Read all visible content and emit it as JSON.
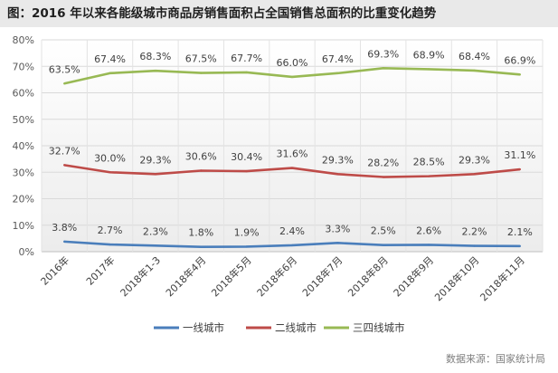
{
  "title": "图：2016 年以来各能级城市商品房销售面积占全国销售总面积的比重变化趋势",
  "source": "数据来源：国家统计局",
  "chart_data": {
    "type": "line",
    "title": "图：2016 年以来各能级城市商品房销售面积占全国销售总面积的比重变化趋势",
    "xlabel": "",
    "ylabel": "",
    "ylim": [
      0,
      80
    ],
    "yticks": [
      "0%",
      "10%",
      "20%",
      "30%",
      "40%",
      "50%",
      "60%",
      "70%",
      "80%"
    ],
    "grid": true,
    "legend_position": "bottom",
    "categories": [
      "2016年",
      "2017年",
      "2018年1-3",
      "2018年4月",
      "2018年5月",
      "2018年6月",
      "2018年7月",
      "2018年8月",
      "2018年9月",
      "2018年10月",
      "2018年11月"
    ],
    "series": [
      {
        "name": "一线城市",
        "color": "#4a7ebb",
        "values": [
          3.8,
          2.7,
          2.3,
          1.8,
          1.9,
          2.4,
          3.3,
          2.5,
          2.6,
          2.2,
          2.1
        ],
        "labels": [
          "3.8%",
          "2.7%",
          "2.3%",
          "1.8%",
          "1.9%",
          "2.4%",
          "3.3%",
          "2.5%",
          "2.6%",
          "2.2%",
          "2.1%"
        ]
      },
      {
        "name": "二线城市",
        "color": "#be4b48",
        "values": [
          32.7,
          30.0,
          29.3,
          30.6,
          30.4,
          31.6,
          29.3,
          28.2,
          28.5,
          29.3,
          31.1
        ],
        "labels": [
          "32.7%",
          "30.0%",
          "29.3%",
          "30.6%",
          "30.4%",
          "31.6%",
          "29.3%",
          "28.2%",
          "28.5%",
          "29.3%",
          "31.1%"
        ]
      },
      {
        "name": "三四线城市",
        "color": "#98b954",
        "values": [
          63.5,
          67.4,
          68.3,
          67.5,
          67.7,
          66.0,
          67.4,
          69.3,
          68.9,
          68.4,
          66.9
        ],
        "labels": [
          "63.5%",
          "67.4%",
          "68.3%",
          "67.5%",
          "67.7%",
          "66.0%",
          "67.4%",
          "69.3%",
          "68.9%",
          "68.4%",
          "66.9%"
        ]
      }
    ]
  }
}
